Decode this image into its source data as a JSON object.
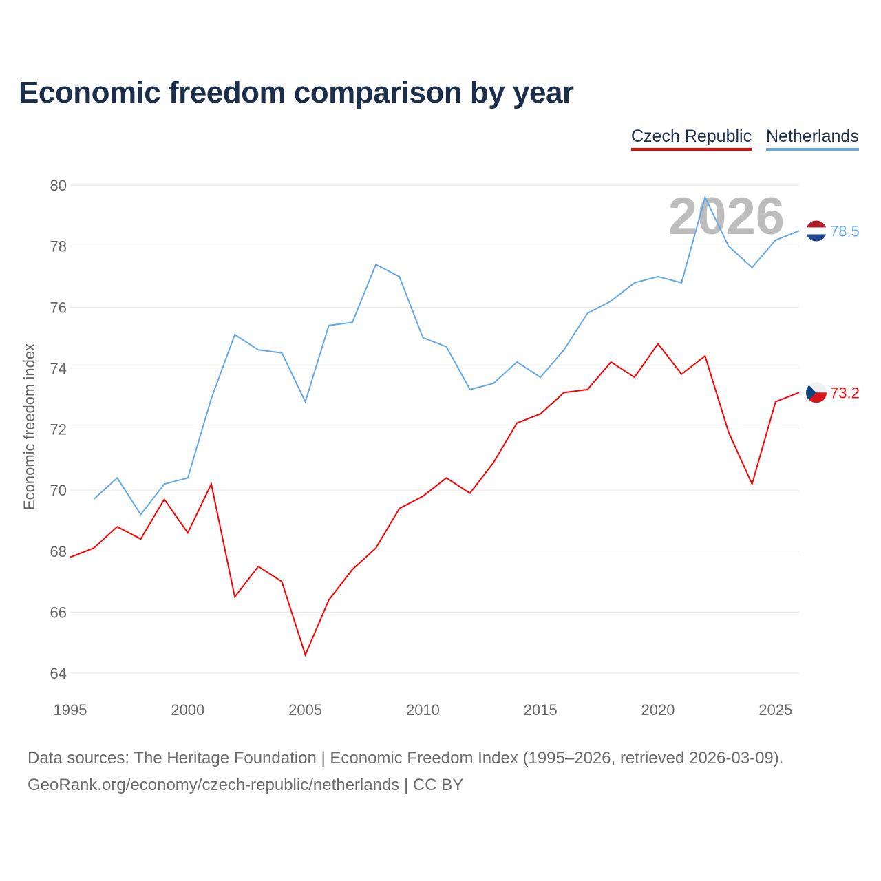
{
  "chart_data": {
    "type": "line",
    "title": "Economic freedom comparison by year",
    "xlabel": "",
    "ylabel": "Economic freedom index",
    "xlim": [
      1995,
      2026
    ],
    "ylim": [
      64,
      80
    ],
    "x_ticks": [
      "1995",
      "2000",
      "2005",
      "2010",
      "2015",
      "2020",
      "2025"
    ],
    "y_ticks": [
      "64",
      "66",
      "68",
      "70",
      "72",
      "74",
      "76",
      "78",
      "80"
    ],
    "year_watermark": "2026",
    "grid": true,
    "legend_position": "top-right",
    "series": [
      {
        "name": "Czech Republic",
        "color": "#ff0000",
        "end_label": "73.2",
        "x": [
          1995,
          1996,
          1997,
          1998,
          1999,
          2000,
          2001,
          2002,
          2003,
          2004,
          2005,
          2006,
          2007,
          2008,
          2009,
          2010,
          2011,
          2012,
          2013,
          2014,
          2015,
          2016,
          2017,
          2018,
          2019,
          2020,
          2021,
          2022,
          2023,
          2024,
          2025,
          2026
        ],
        "values": [
          67.8,
          68.1,
          68.8,
          68.4,
          69.7,
          68.6,
          70.2,
          66.5,
          67.5,
          67.0,
          64.6,
          66.4,
          67.4,
          68.1,
          69.4,
          69.8,
          70.4,
          69.9,
          70.9,
          72.2,
          72.5,
          73.2,
          73.3,
          74.2,
          73.7,
          74.8,
          73.8,
          74.4,
          71.9,
          70.2,
          72.9,
          73.2
        ]
      },
      {
        "name": "Netherlands",
        "color": "#63a9ea",
        "end_label": "78.5",
        "x": [
          1996,
          1997,
          1998,
          1999,
          2000,
          2001,
          2002,
          2003,
          2004,
          2005,
          2006,
          2007,
          2008,
          2009,
          2010,
          2011,
          2012,
          2013,
          2014,
          2015,
          2016,
          2017,
          2018,
          2019,
          2020,
          2021,
          2022,
          2023,
          2024,
          2025,
          2026
        ],
        "values": [
          69.7,
          70.4,
          69.2,
          70.2,
          70.4,
          73.0,
          75.1,
          74.6,
          74.5,
          72.9,
          75.4,
          75.5,
          77.4,
          77.0,
          75.0,
          74.7,
          73.3,
          73.5,
          74.2,
          73.7,
          74.6,
          75.8,
          76.2,
          76.8,
          77.0,
          76.8,
          79.6,
          78.0,
          77.3,
          78.2,
          78.5
        ]
      }
    ]
  },
  "sources": {
    "line1": "Data sources: The Heritage Foundation | Economic Freedom Index (1995–2026, retrieved 2026-03-09).",
    "line2": "GeoRank.org/economy/czech-republic/netherlands | CC BY"
  }
}
